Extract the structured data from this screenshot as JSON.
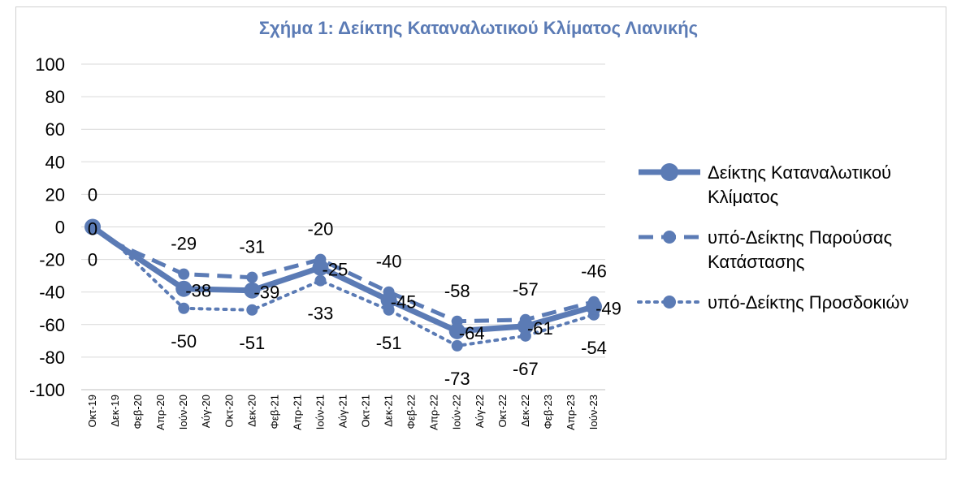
{
  "chart_data": {
    "type": "line",
    "title": "Σχήμα 1: Δείκτης Καταναλωτικού Κλίματος Λιανικής",
    "xlabel": "",
    "ylabel": "",
    "ylim": [
      -100,
      100
    ],
    "yticks": [
      100,
      80,
      60,
      40,
      20,
      0,
      -20,
      -40,
      -60,
      -80,
      -100
    ],
    "grid": true,
    "legend": "right",
    "categories": [
      "Οκτ-19",
      "Δεκ-19",
      "Φεβ-20",
      "Απρ-20",
      "Ιούν-20",
      "Αύγ-20",
      "Οκτ-20",
      "Δεκ-20",
      "Φεβ-21",
      "Απρ-21",
      "Ιούν-21",
      "Αύγ-21",
      "Οκτ-21",
      "Δεκ-21",
      "Φεβ-22",
      "Απρ-22",
      "Ιούν-22",
      "Αύγ-22",
      "Οκτ-22",
      "Δεκ-22",
      "Φεβ-23",
      "Απρ-23",
      "Ιούν-23"
    ],
    "series": [
      {
        "name": "Δείκτης Καταναλωτικού Κλίματος",
        "legend_lines": [
          "Δείκτης Καταναλωτικού",
          "Κλίματος"
        ],
        "style": "solid",
        "color": "#5b7bb5",
        "values": [
          0,
          -10,
          null,
          null,
          -38,
          null,
          null,
          -39,
          null,
          null,
          -25,
          null,
          null,
          -45,
          null,
          null,
          -64,
          null,
          null,
          -61,
          null,
          null,
          -49
        ],
        "labels": [
          {
            "i": 0,
            "text": "0"
          },
          {
            "i": 4,
            "text": "-38"
          },
          {
            "i": 7,
            "text": "-39"
          },
          {
            "i": 10,
            "text": "-25"
          },
          {
            "i": 13,
            "text": "-45"
          },
          {
            "i": 16,
            "text": "-64"
          },
          {
            "i": 19,
            "text": "-61"
          },
          {
            "i": 22,
            "text": "-49"
          }
        ]
      },
      {
        "name": "υπό-Δείκτης Παρούσας Κατάστασης",
        "legend_lines": [
          "υπό-Δείκτης Παρούσας",
          "Κατάστασης"
        ],
        "style": "dashed",
        "color": "#5b7bb5",
        "values": [
          0,
          -10,
          null,
          null,
          -29,
          null,
          null,
          -31,
          null,
          null,
          -20,
          null,
          null,
          -40,
          null,
          null,
          -58,
          null,
          null,
          -57,
          null,
          null,
          -46
        ],
        "labels": [
          {
            "i": 0,
            "text": "0"
          },
          {
            "i": 4,
            "text": "-29"
          },
          {
            "i": 7,
            "text": "-31"
          },
          {
            "i": 10,
            "text": "-20"
          },
          {
            "i": 13,
            "text": "-40"
          },
          {
            "i": 16,
            "text": "-58"
          },
          {
            "i": 19,
            "text": "-57"
          },
          {
            "i": 22,
            "text": "-46"
          }
        ]
      },
      {
        "name": "υπό-Δείκτης Προσδοκιών",
        "legend_lines": [
          "υπό-Δείκτης Προσδοκιών"
        ],
        "style": "dotted",
        "color": "#5b7bb5",
        "values": [
          0,
          -10,
          null,
          null,
          -50,
          null,
          null,
          -51,
          null,
          null,
          -33,
          null,
          null,
          -51,
          null,
          null,
          -73,
          null,
          null,
          -67,
          null,
          null,
          -54
        ],
        "labels": [
          {
            "i": 0,
            "text": "0"
          },
          {
            "i": 4,
            "text": "-50"
          },
          {
            "i": 7,
            "text": "-51"
          },
          {
            "i": 10,
            "text": "-33"
          },
          {
            "i": 13,
            "text": "-51"
          },
          {
            "i": 16,
            "text": "-73"
          },
          {
            "i": 19,
            "text": "-67"
          },
          {
            "i": 22,
            "text": "-54"
          }
        ]
      }
    ]
  }
}
